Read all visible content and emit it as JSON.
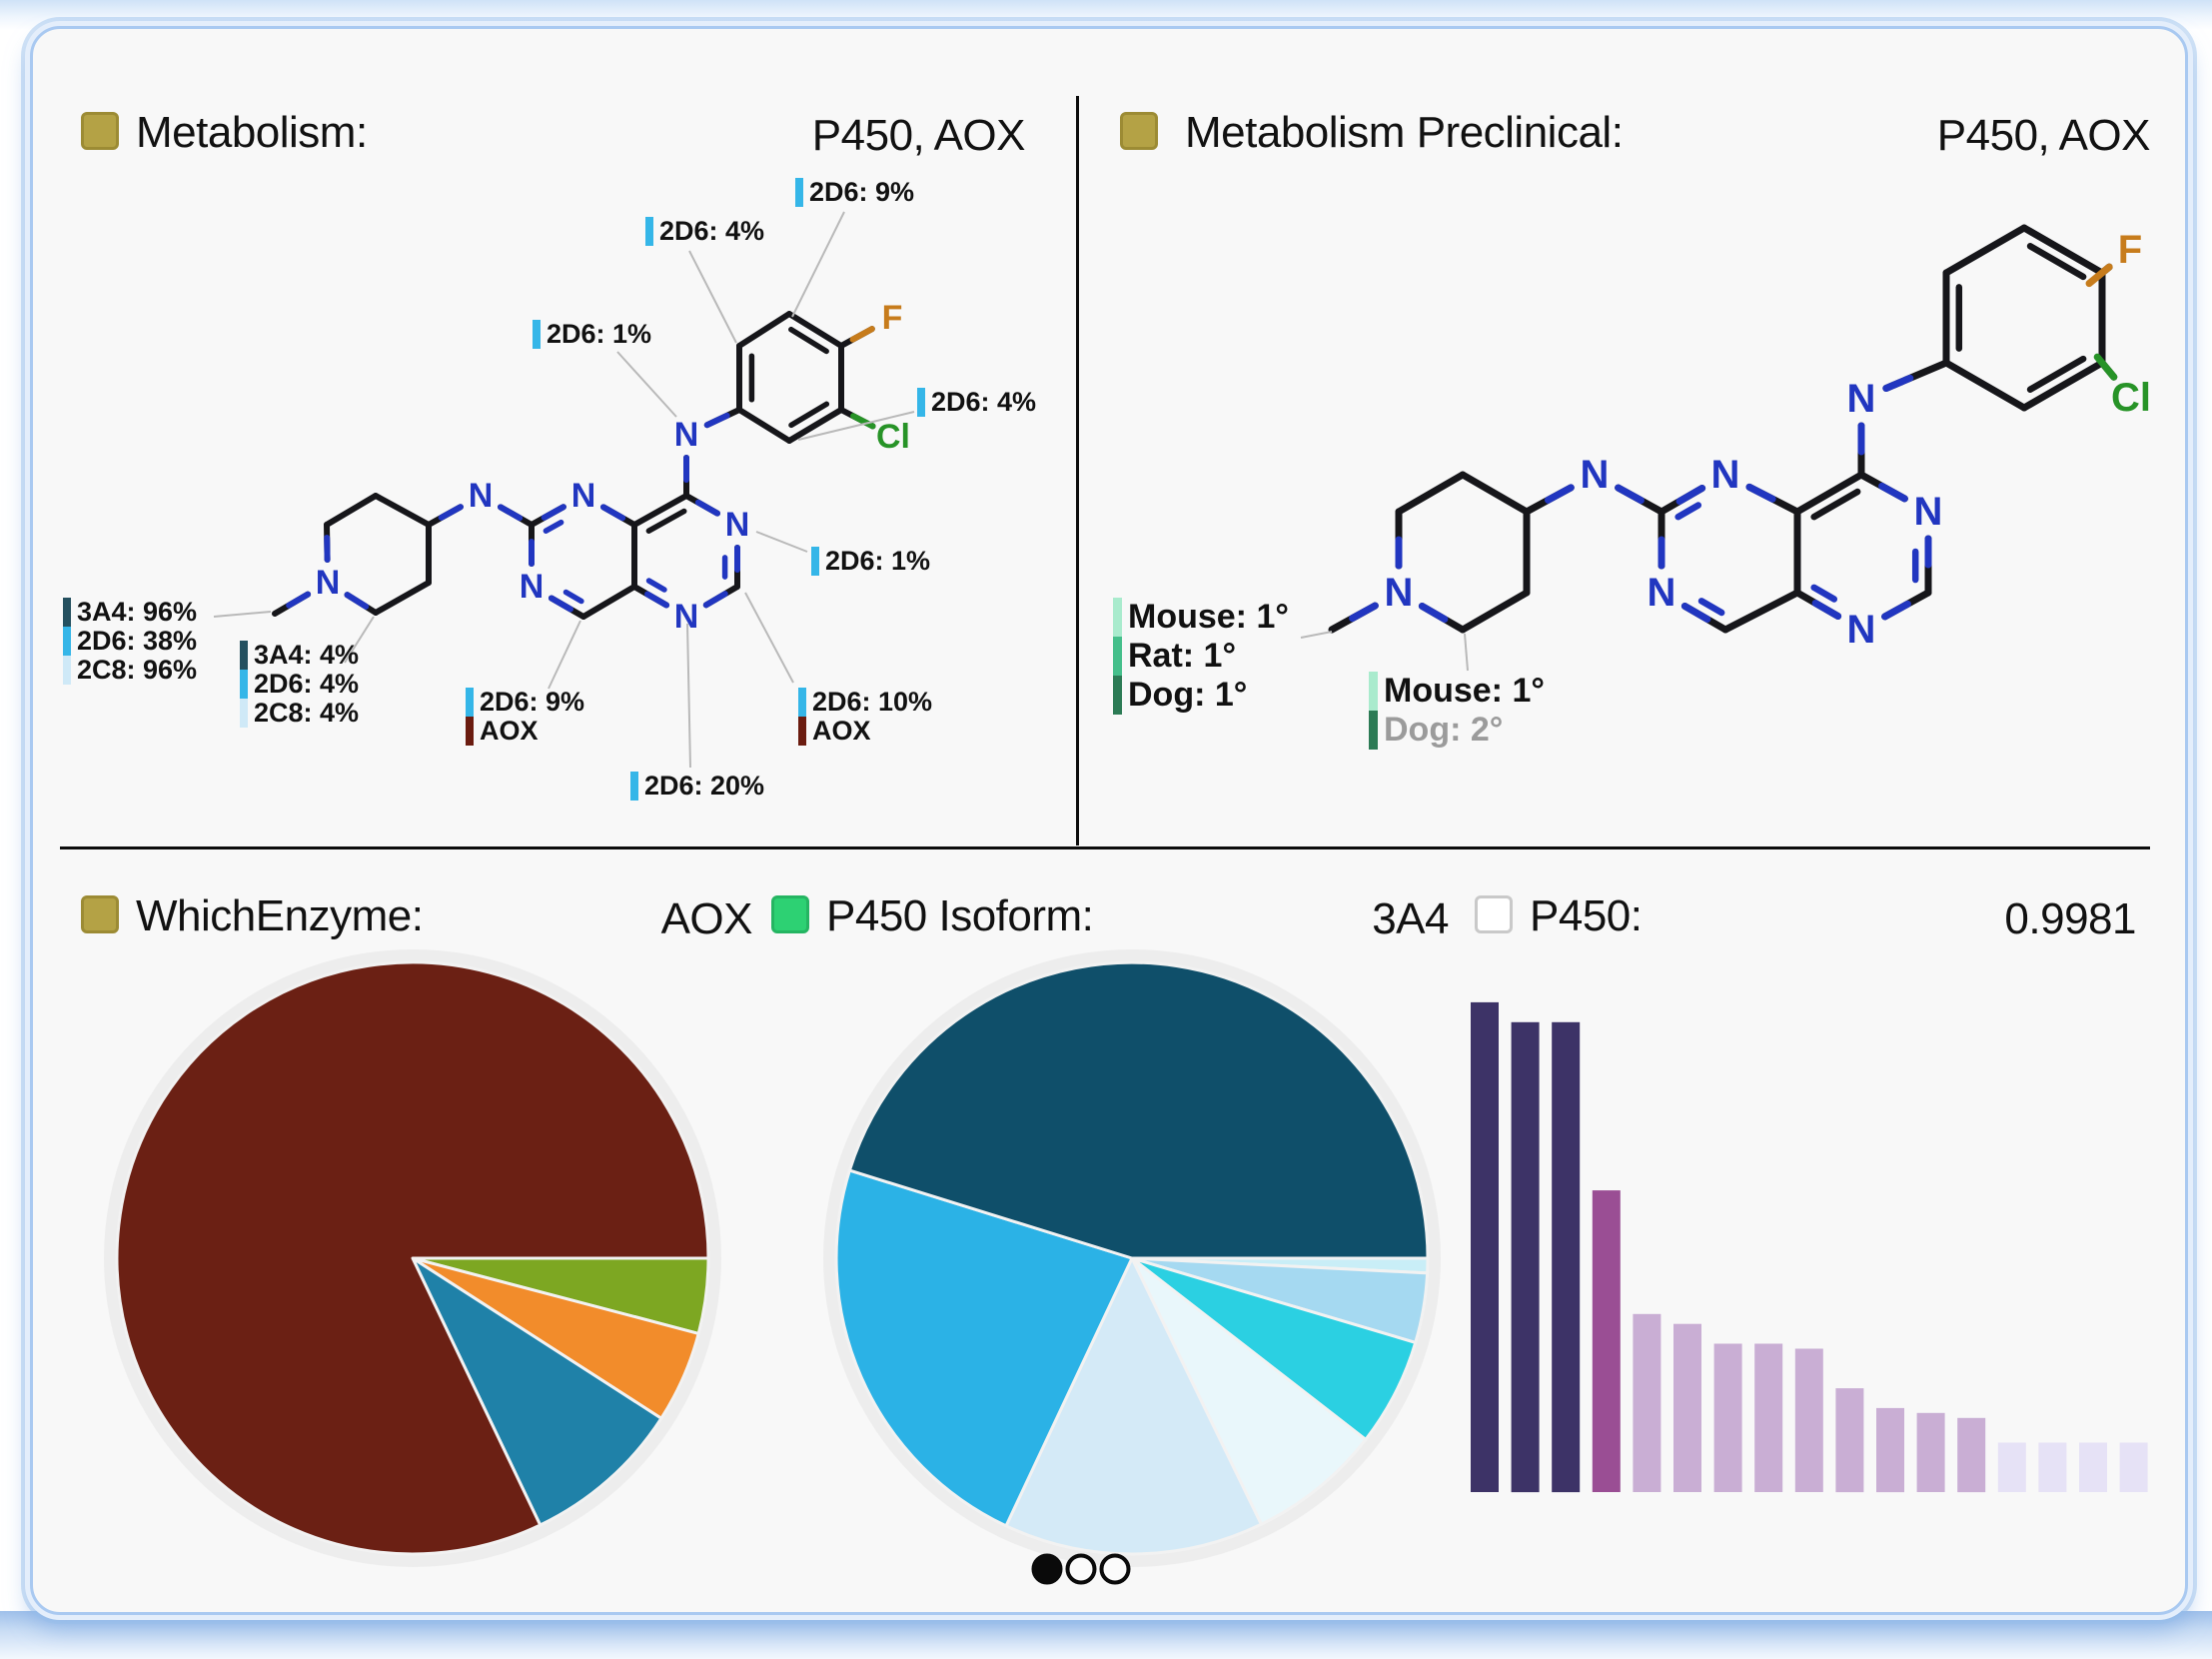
{
  "headers": {
    "metabolism": {
      "title": "Metabolism:",
      "value": "P450, AOX"
    },
    "preclinical": {
      "title": "Metabolism Preclinical:",
      "value": "P450, AOX"
    },
    "which_enzyme": {
      "title": "WhichEnzyme:",
      "value": "AOX"
    },
    "isoform": {
      "title": "P450 Isoform:",
      "value": "3A4"
    },
    "p450": {
      "title": "P450:",
      "value": "0.9981"
    }
  },
  "palette": {
    "gold_chip": "#b4a245",
    "green_chip": "#2dd173",
    "white_chip": "#ffffff",
    "cyp3a4": "#24505f",
    "cyp2d6": "#35b6e8",
    "cyp2c8": "#cfe9f7",
    "aox": "#6b1c10",
    "mouse": "#a9ebcd",
    "rat": "#45bf8b",
    "dog": "#2c7b55",
    "leader_line": "#b9b9b9"
  },
  "atom_colors": {
    "N": "#2136c0",
    "F": "#c77c1c",
    "Cl": "#279327"
  },
  "symbols": {
    "N": "N",
    "F": "F",
    "Cl": "Cl"
  },
  "annotations": {
    "metabolism": [
      {
        "id": "benzene-top",
        "lines": [
          {
            "text": "2D6: 9%",
            "color": "#35b6e8"
          }
        ]
      },
      {
        "id": "benzene-upper",
        "lines": [
          {
            "text": "2D6: 4%",
            "color": "#35b6e8"
          }
        ]
      },
      {
        "id": "nh-left",
        "lines": [
          {
            "text": "2D6: 1%",
            "color": "#35b6e8"
          }
        ]
      },
      {
        "id": "chloro-right",
        "lines": [
          {
            "text": "2D6: 4%",
            "color": "#35b6e8"
          }
        ]
      },
      {
        "id": "ring-n5",
        "lines": [
          {
            "text": "2D6: 1%",
            "color": "#35b6e8"
          }
        ]
      },
      {
        "id": "methyl",
        "lines": [
          {
            "text": "3A4: 96%",
            "color": "#24505f"
          },
          {
            "text": "2D6: 38%",
            "color": "#35b6e8"
          },
          {
            "text": "2C8: 96%",
            "color": "#cfe9f7"
          }
        ]
      },
      {
        "id": "piperidine",
        "lines": [
          {
            "text": "3A4: 4%",
            "color": "#24505f"
          },
          {
            "text": "2D6: 4%",
            "color": "#35b6e8"
          },
          {
            "text": "2C8: 4%",
            "color": "#cfe9f7"
          }
        ]
      },
      {
        "id": "core-c8",
        "lines": [
          {
            "text": "2D6: 9%",
            "color": "#35b6e8"
          },
          {
            "text": "AOX",
            "color": "#6b1c10"
          }
        ]
      },
      {
        "id": "core-n7",
        "lines": [
          {
            "text": "2D6: 20%",
            "color": "#35b6e8"
          }
        ]
      },
      {
        "id": "core-c6",
        "lines": [
          {
            "text": "2D6: 10%",
            "color": "#35b6e8"
          },
          {
            "text": "AOX",
            "color": "#6b1c10"
          }
        ]
      }
    ],
    "preclinical": [
      {
        "id": "methyl",
        "lines": [
          {
            "text": "Mouse: 1°",
            "color": "#a9ebcd"
          },
          {
            "text": "Rat: 1°",
            "color": "#45bf8b"
          },
          {
            "text": "Dog: 1°",
            "color": "#2c7b55"
          }
        ]
      },
      {
        "id": "pip-c2",
        "lines": [
          {
            "text": "Mouse: 1°",
            "color": "#a9ebcd"
          },
          {
            "text": "Dog: 2°",
            "color": "#2c7b55",
            "muted": true
          }
        ]
      }
    ]
  },
  "chart_data": [
    {
      "type": "pie",
      "title": "WhichEnzyme",
      "selected_value": "AOX",
      "start_angle_deg": 0,
      "direction": "clockwise",
      "slices": [
        {
          "label": "",
          "value": 4.1,
          "color": "#7da722"
        },
        {
          "label": "",
          "value": 5.0,
          "color": "#f28c2b"
        },
        {
          "label": "",
          "value": 8.8,
          "color": "#1f81a8"
        },
        {
          "label": "AOX",
          "value": 82.1,
          "color": "#6b2014"
        }
      ]
    },
    {
      "type": "pie",
      "title": "P450 Isoform",
      "selected_value": "3A4",
      "start_angle_deg": 0,
      "direction": "clockwise",
      "slices": [
        {
          "label": "",
          "value": 0.8,
          "color": "#c9eef7"
        },
        {
          "label": "",
          "value": 3.8,
          "color": "#a5d9f1"
        },
        {
          "label": "",
          "value": 5.9,
          "color": "#2bd0e2"
        },
        {
          "label": "",
          "value": 7.3,
          "color": "#e9f7fb"
        },
        {
          "label": "",
          "value": 14.2,
          "color": "#d4eaf7"
        },
        {
          "label": "",
          "value": 22.8,
          "color": "#2bb2e6"
        },
        {
          "label": "3A4",
          "value": 45.2,
          "color": "#0f4f6a"
        }
      ]
    },
    {
      "type": "bar",
      "title": "P450",
      "value_label": "0.9981",
      "ylim": [
        0,
        1
      ],
      "values": [
        0.99,
        0.95,
        0.95,
        0.61,
        0.36,
        0.34,
        0.3,
        0.3,
        0.29,
        0.21,
        0.17,
        0.16,
        0.15,
        0.1,
        0.1,
        0.1,
        0.1
      ],
      "colors": [
        "#3d3367",
        "#3d3367",
        "#3d3367",
        "#9a4e94",
        "#c9aed4",
        "#c9aed4",
        "#c9aed4",
        "#c9aed4",
        "#c9aed4",
        "#c9aed4",
        "#c9aed4",
        "#c9aed4",
        "#c9aed4",
        "#e6e2f6",
        "#e6e2f6",
        "#e6e2f6",
        "#e6e2f6"
      ]
    }
  ],
  "pagination": {
    "dots": [
      {
        "index": 1,
        "active": true
      },
      {
        "index": 2,
        "active": false
      },
      {
        "index": 3,
        "active": false
      }
    ]
  }
}
